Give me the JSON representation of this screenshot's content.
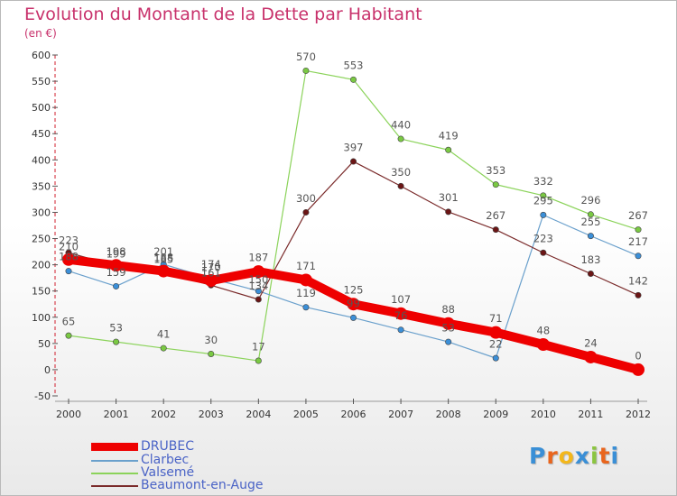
{
  "title": "Evolution du Montant de la Dette par Habitant",
  "subtitle": "(en €)",
  "logo": {
    "text": "Proxiti",
    "colors": [
      "#3a8fd6",
      "#e9651d",
      "#f3b71b",
      "#3a8fd6",
      "#8bc540",
      "#e9651d",
      "#3a8fd6"
    ]
  },
  "chart_data": {
    "type": "line",
    "x": [
      2000,
      2001,
      2002,
      2003,
      2004,
      2005,
      2006,
      2007,
      2008,
      2009,
      2010,
      2011,
      2012
    ],
    "xlabels": [
      "2000",
      "2001",
      "2002",
      "2003",
      "2004",
      "2005",
      "2006",
      "2007",
      "2008",
      "2009",
      "2010",
      "2011",
      "2012"
    ],
    "ylim": [
      -50,
      600
    ],
    "yticks": [
      -50,
      0,
      50,
      100,
      150,
      200,
      250,
      300,
      350,
      400,
      450,
      500,
      550,
      600
    ],
    "grid": false,
    "legend_position": "bottom-left",
    "series": [
      {
        "name": "Valsemé",
        "color": "#8bd35a",
        "markerColor": "#7ac943",
        "width": 1.2,
        "segments": [
          [
            0,
            4
          ],
          [
            4,
            12
          ]
        ],
        "values": [
          65,
          53,
          41,
          30,
          17,
          570,
          553,
          440,
          419,
          353,
          332,
          296,
          267
        ]
      },
      {
        "name": "Clarbec",
        "color": "#6aa0cc",
        "markerColor": "#3b8fd8",
        "width": 1.2,
        "segments": [
          [
            0,
            12
          ]
        ],
        "values": [
          188,
          159,
          201,
          174,
          150,
          119,
          99,
          76,
          53,
          22,
          295,
          255,
          217
        ]
      },
      {
        "name": "Beaumont-en-Auge",
        "color": "#7a2a2a",
        "markerColor": "#6b1515",
        "width": 1.2,
        "segments": [
          [
            0,
            4
          ],
          [
            4,
            12
          ]
        ],
        "values": [
          223,
          198,
          185,
          161,
          134,
          300,
          397,
          350,
          301,
          267,
          223,
          183,
          142
        ]
      },
      {
        "name": "DRUBEC",
        "color": "#ee0000",
        "markerColor": "#ee0000",
        "width": 10,
        "segments": [
          [
            0,
            12
          ]
        ],
        "values": [
          210,
          199,
          188,
          170,
          187,
          171,
          125,
          107,
          88,
          71,
          48,
          24,
          0
        ]
      }
    ],
    "labels": [
      {
        "x": 2000,
        "y": 240,
        "text": "223",
        "color": "#555"
      },
      {
        "x": 2000,
        "y": 228,
        "text": "210",
        "color": "#555"
      },
      {
        "x": 2000,
        "y": 209,
        "text": "188",
        "color": "#555"
      },
      {
        "x": 2000,
        "y": 85,
        "text": "65",
        "color": "#555"
      },
      {
        "x": 2001,
        "y": 218,
        "text": "198",
        "color": "#555"
      },
      {
        "x": 2001,
        "y": 214,
        "text": "199",
        "color": "#555"
      },
      {
        "x": 2001,
        "y": 179,
        "text": "159",
        "color": "#555"
      },
      {
        "x": 2001,
        "y": 73,
        "text": "53",
        "color": "#555"
      },
      {
        "x": 2002,
        "y": 218,
        "text": "201",
        "color": "#555"
      },
      {
        "x": 2002,
        "y": 207,
        "text": "188",
        "color": "#555"
      },
      {
        "x": 2002,
        "y": 204,
        "text": "185",
        "color": "#555"
      },
      {
        "x": 2002,
        "y": 61,
        "text": "41",
        "color": "#555"
      },
      {
        "x": 2003,
        "y": 194,
        "text": "174",
        "color": "#555"
      },
      {
        "x": 2003,
        "y": 188,
        "text": "170",
        "color": "#555"
      },
      {
        "x": 2003,
        "y": 178,
        "text": "161",
        "color": "#555"
      },
      {
        "x": 2003,
        "y": 50,
        "text": "30",
        "color": "#555"
      },
      {
        "x": 2004,
        "y": 207,
        "text": "187",
        "color": "#555"
      },
      {
        "x": 2004,
        "y": 165,
        "text": "150",
        "color": "#555"
      },
      {
        "x": 2004,
        "y": 153,
        "text": "134",
        "color": "#555"
      },
      {
        "x": 2004,
        "y": 37,
        "text": "17",
        "color": "#555"
      },
      {
        "x": 2005,
        "y": 590,
        "text": "570",
        "color": "#555"
      },
      {
        "x": 2005,
        "y": 320,
        "text": "300",
        "color": "#555"
      },
      {
        "x": 2005,
        "y": 191,
        "text": "171",
        "color": "#555"
      },
      {
        "x": 2005,
        "y": 139,
        "text": "119",
        "color": "#555"
      },
      {
        "x": 2006,
        "y": 573,
        "text": "553",
        "color": "#555"
      },
      {
        "x": 2006,
        "y": 417,
        "text": "397",
        "color": "#555"
      },
      {
        "x": 2006,
        "y": 145,
        "text": "125",
        "color": "#555"
      },
      {
        "x": 2006,
        "y": 119,
        "text": "99",
        "color": "#555"
      },
      {
        "x": 2007,
        "y": 460,
        "text": "440",
        "color": "#555"
      },
      {
        "x": 2007,
        "y": 370,
        "text": "350",
        "color": "#555"
      },
      {
        "x": 2007,
        "y": 127,
        "text": "107",
        "color": "#555"
      },
      {
        "x": 2007,
        "y": 96,
        "text": "76",
        "color": "#555"
      },
      {
        "x": 2008,
        "y": 439,
        "text": "419",
        "color": "#555"
      },
      {
        "x": 2008,
        "y": 321,
        "text": "301",
        "color": "#555"
      },
      {
        "x": 2008,
        "y": 108,
        "text": "88",
        "color": "#555"
      },
      {
        "x": 2008,
        "y": 73,
        "text": "53",
        "color": "#555"
      },
      {
        "x": 2009,
        "y": 373,
        "text": "353",
        "color": "#555"
      },
      {
        "x": 2009,
        "y": 287,
        "text": "267",
        "color": "#555"
      },
      {
        "x": 2009,
        "y": 91,
        "text": "71",
        "color": "#555"
      },
      {
        "x": 2009,
        "y": 42,
        "text": "22",
        "color": "#555"
      },
      {
        "x": 2010,
        "y": 352,
        "text": "332",
        "color": "#555"
      },
      {
        "x": 2010,
        "y": 315,
        "text": "295",
        "color": "#555"
      },
      {
        "x": 2010,
        "y": 243,
        "text": "223",
        "color": "#555"
      },
      {
        "x": 2010,
        "y": 68,
        "text": "48",
        "color": "#555"
      },
      {
        "x": 2011,
        "y": 316,
        "text": "296",
        "color": "#555"
      },
      {
        "x": 2011,
        "y": 275,
        "text": "255",
        "color": "#555"
      },
      {
        "x": 2011,
        "y": 203,
        "text": "183",
        "color": "#555"
      },
      {
        "x": 2011,
        "y": 44,
        "text": "24",
        "color": "#555"
      },
      {
        "x": 2012,
        "y": 287,
        "text": "267",
        "color": "#555"
      },
      {
        "x": 2012,
        "y": 237,
        "text": "217",
        "color": "#555"
      },
      {
        "x": 2012,
        "y": 162,
        "text": "142",
        "color": "#555"
      },
      {
        "x": 2012,
        "y": 20,
        "text": "0",
        "color": "#555"
      }
    ]
  },
  "legend": [
    {
      "label": "DRUBEC",
      "color": "#ee0000",
      "thickness": 9
    },
    {
      "label": "Clarbec",
      "color": "#6aa0cc",
      "thickness": 2
    },
    {
      "label": "Valsemé",
      "color": "#8bd35a",
      "thickness": 2
    },
    {
      "label": "Beaumont-en-Auge",
      "color": "#7a2a2a",
      "thickness": 2
    }
  ]
}
